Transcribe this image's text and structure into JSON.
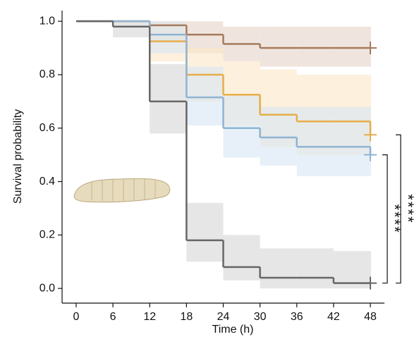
{
  "chart_data": {
    "type": "step",
    "x_label": "Time (h)",
    "y_label": "Survival probability",
    "x": [
      0,
      6,
      12,
      18,
      24,
      30,
      36,
      42,
      48
    ],
    "xlim": [
      -2.3,
      50.3
    ],
    "xticks": [
      0,
      6,
      12,
      18,
      24,
      30,
      36,
      42,
      48
    ],
    "ylim": [
      -0.055,
      1.04
    ],
    "yticks": [
      {
        "value": 0,
        "label": "0.0"
      },
      {
        "value": 0.2,
        "label": "0.2"
      },
      {
        "value": 0.4,
        "label": "0.4"
      },
      {
        "value": 0.6,
        "label": "0.6"
      },
      {
        "value": 0.8,
        "label": "0.8"
      },
      {
        "value": 1,
        "label": "1.0"
      }
    ],
    "series": [
      {
        "color": "#a57a5c",
        "band_color": "#e6d3c8",
        "values": [
          1,
          1,
          0.985,
          0.95,
          0.915,
          0.9,
          0.9,
          0.9,
          0.9
        ],
        "lower": [
          1,
          1,
          0.93,
          0.88,
          0.85,
          0.83,
          0.83,
          0.83,
          0.83
        ],
        "upper": [
          1,
          1,
          1,
          1,
          0.98,
          0.98,
          0.98,
          0.98,
          0.98
        ]
      },
      {
        "color": "#e6ad4a",
        "band_color": "#fbe6c6",
        "values": [
          1,
          1,
          0.925,
          0.8,
          0.725,
          0.65,
          0.625,
          0.625,
          0.575
        ],
        "lower": [
          1,
          1,
          0.85,
          0.7,
          0.61,
          0.53,
          0.5,
          0.5,
          0.5
        ],
        "upper": [
          1,
          1,
          1,
          0.9,
          0.85,
          0.82,
          0.8,
          0.8,
          0.8
        ]
      },
      {
        "color": "#8fb3d3",
        "band_color": "#d7e6f4",
        "values": [
          1,
          1,
          0.95,
          0.715,
          0.6,
          0.565,
          0.53,
          0.53,
          0.5
        ],
        "lower": [
          1,
          1,
          0.88,
          0.61,
          0.49,
          0.46,
          0.42,
          0.42,
          0.42
        ],
        "upper": [
          1,
          1,
          1,
          0.83,
          0.72,
          0.68,
          0.68,
          0.68,
          0.68
        ]
      },
      {
        "color": "#666666",
        "band_color": "#d6d6d6",
        "values": [
          1,
          0.98,
          0.7,
          0.18,
          0.08,
          0.04,
          0.04,
          0.02,
          0.02
        ],
        "lower": [
          1,
          0.94,
          0.58,
          0.1,
          0.03,
          0,
          0,
          0,
          0
        ],
        "upper": [
          1,
          1,
          0.84,
          0.32,
          0.2,
          0.15,
          0.15,
          0.14,
          0.14
        ]
      }
    ],
    "significance": [
      {
        "from": 2,
        "to": 3,
        "label": "****"
      },
      {
        "from": 1,
        "to": 3,
        "label": "****"
      }
    ]
  }
}
